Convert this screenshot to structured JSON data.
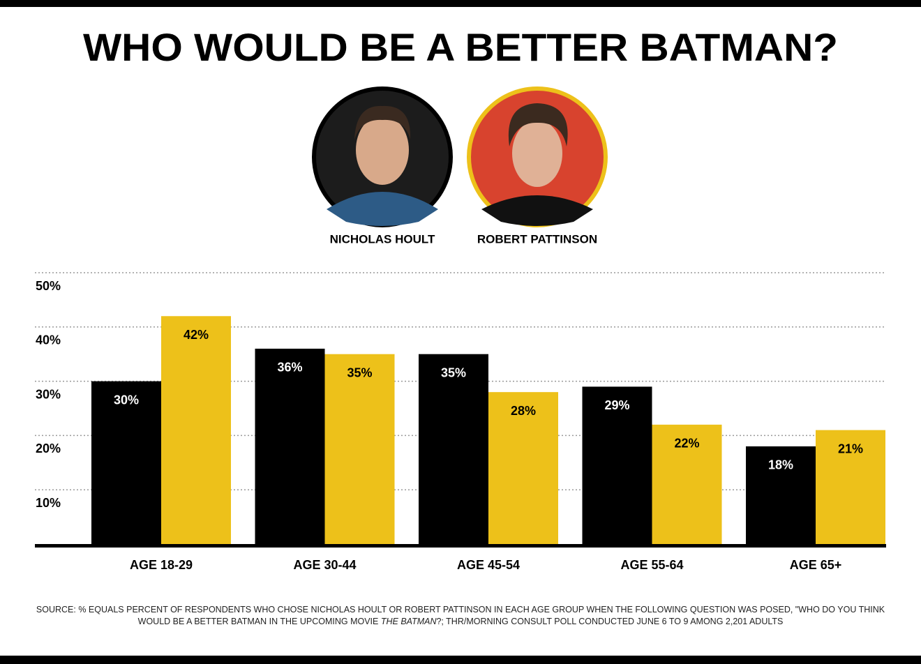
{
  "chart_data": {
    "type": "bar",
    "title": "WHO WOULD BE A BETTER BATMAN?",
    "categories": [
      "AGE 18-29",
      "AGE 30-44",
      "AGE 45-54",
      "AGE 55-64",
      "AGE 65+"
    ],
    "series": [
      {
        "name": "NICHOLAS HOULT",
        "color": "#000000",
        "values": [
          30,
          36,
          35,
          29,
          18
        ],
        "value_labels": [
          "30%",
          "36%",
          "35%",
          "29%",
          "18%"
        ]
      },
      {
        "name": "ROBERT PATTINSON",
        "color": "#edc11a",
        "values": [
          42,
          35,
          28,
          22,
          21
        ],
        "value_labels": [
          "42%",
          "35%",
          "28%",
          "22%",
          "21%"
        ]
      }
    ],
    "ylim": [
      0,
      50
    ],
    "yticks": [
      {
        "value": 10,
        "label": "10%"
      },
      {
        "value": 20,
        "label": "20%"
      },
      {
        "value": 30,
        "label": "30%"
      },
      {
        "value": 40,
        "label": "40%"
      },
      {
        "value": 50,
        "label": "50%"
      }
    ],
    "grid": true,
    "note": [
      "SOURCE: % EQUALS PERCENT OF RESPONDENTS WHO CHOSE NICHOLAS HOULT OR ROBERT PATTINSON IN EACH AGE GROUP WHEN THE FOLLOWING QUESTION WAS POSED, \"WHO DO YOU THINK WOULD BE A BETTER BATMAN IN THE UPCOMING MOVIE ",
      "THE BATMAN",
      "?; THR/MORNING CONSULT POLL CONDUCTED JUNE 6 TO 9 AMONG 2,201 ADULTS"
    ]
  }
}
